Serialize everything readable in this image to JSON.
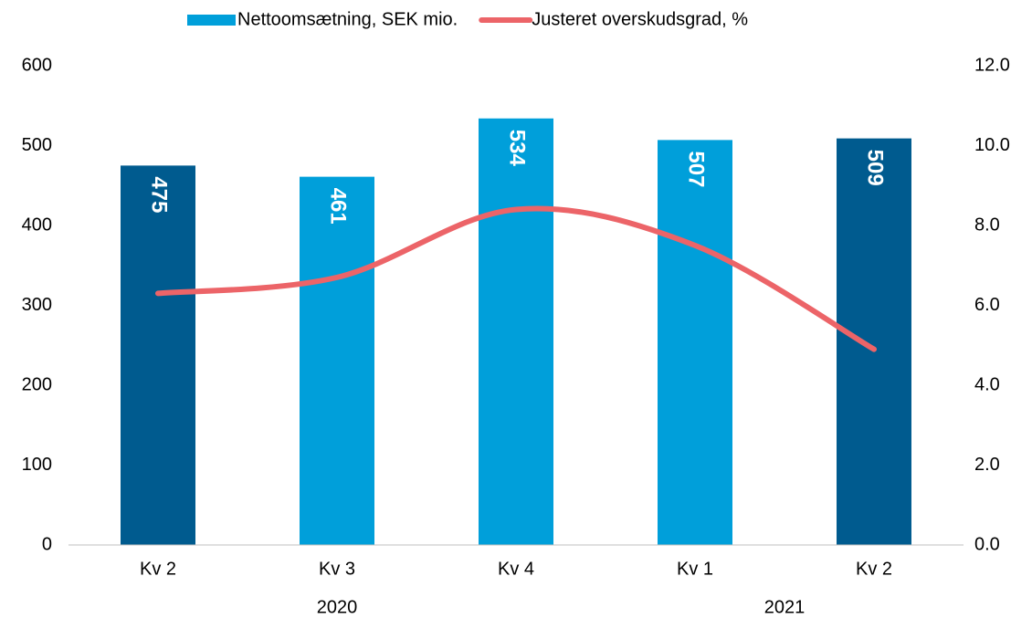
{
  "chart_data": {
    "type": "bar_line",
    "categories": [
      "Kv 2",
      "Kv 3",
      "Kv 4",
      "Kv 1",
      "Kv 2"
    ],
    "x_groups": [
      {
        "label": "2020",
        "start": 0,
        "end": 2
      },
      {
        "label": "2021",
        "start": 3,
        "end": 4
      }
    ],
    "series": [
      {
        "name": "Nettoomsætning, SEK mio.",
        "type": "bar",
        "color": "#009fda",
        "colors": [
          "#005b8f",
          "#009fda",
          "#009fda",
          "#009fda",
          "#005b8f"
        ],
        "values": [
          475,
          461,
          534,
          507,
          509
        ],
        "data_labels": true
      },
      {
        "name": "Justeret overskudsgrad, %",
        "type": "line",
        "axis": "y2",
        "color": "#ec6468",
        "smooth": true,
        "values": [
          6.3,
          6.7,
          8.4,
          7.5,
          4.9
        ]
      }
    ],
    "ylim": [
      0,
      600
    ],
    "yticks": [
      0,
      100,
      200,
      300,
      400,
      500,
      600
    ],
    "y2lim": [
      0,
      12
    ],
    "y2ticks": [
      {
        "value": 0,
        "label": "0.0"
      },
      {
        "value": 2,
        "label": "2.0"
      },
      {
        "value": 4,
        "label": "4.0"
      },
      {
        "value": 6,
        "label": "6.0"
      },
      {
        "value": 8,
        "label": "8.0"
      },
      {
        "value": 10,
        "label": "10.0"
      },
      {
        "value": 12,
        "label": "12.0"
      }
    ],
    "grid": false,
    "legend": "top"
  }
}
